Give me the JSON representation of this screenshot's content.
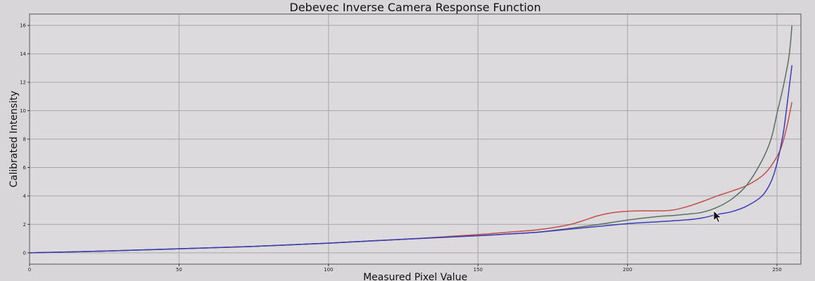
{
  "chart_data": {
    "type": "line",
    "title": "Debevec Inverse Camera Response Function",
    "xlabel": "Measured Pixel Value",
    "ylabel": "Calibrated Intensity",
    "xlim": [
      0,
      258
    ],
    "ylim": [
      -0.8,
      16.8
    ],
    "xticks": [
      0,
      50,
      100,
      150,
      200,
      250
    ],
    "yticks": [
      0,
      2,
      4,
      6,
      8,
      10,
      12,
      14,
      16
    ],
    "grid": true,
    "series": [
      {
        "color": "#c0504d",
        "points": [
          [
            0,
            0
          ],
          [
            25,
            0.12
          ],
          [
            50,
            0.28
          ],
          [
            75,
            0.45
          ],
          [
            100,
            0.68
          ],
          [
            125,
            0.95
          ],
          [
            150,
            1.28
          ],
          [
            160,
            1.45
          ],
          [
            170,
            1.62
          ],
          [
            180,
            1.95
          ],
          [
            185,
            2.25
          ],
          [
            190,
            2.6
          ],
          [
            195,
            2.82
          ],
          [
            200,
            2.92
          ],
          [
            205,
            2.95
          ],
          [
            210,
            2.95
          ],
          [
            215,
            3.0
          ],
          [
            220,
            3.25
          ],
          [
            225,
            3.6
          ],
          [
            230,
            4.0
          ],
          [
            235,
            4.35
          ],
          [
            240,
            4.75
          ],
          [
            245,
            5.4
          ],
          [
            248,
            6.1
          ],
          [
            251,
            7.2
          ],
          [
            253,
            8.6
          ],
          [
            255,
            10.6
          ]
        ]
      },
      {
        "color": "#5a7060",
        "points": [
          [
            0,
            0
          ],
          [
            25,
            0.12
          ],
          [
            50,
            0.28
          ],
          [
            75,
            0.45
          ],
          [
            100,
            0.68
          ],
          [
            125,
            0.95
          ],
          [
            150,
            1.2
          ],
          [
            160,
            1.32
          ],
          [
            170,
            1.45
          ],
          [
            180,
            1.7
          ],
          [
            190,
            1.98
          ],
          [
            200,
            2.3
          ],
          [
            210,
            2.55
          ],
          [
            215,
            2.62
          ],
          [
            220,
            2.72
          ],
          [
            225,
            2.85
          ],
          [
            230,
            3.2
          ],
          [
            235,
            3.8
          ],
          [
            240,
            4.8
          ],
          [
            245,
            6.5
          ],
          [
            248,
            8.0
          ],
          [
            250,
            9.8
          ],
          [
            252,
            11.6
          ],
          [
            254,
            13.8
          ],
          [
            255,
            16.0
          ]
        ]
      },
      {
        "color": "#3c3cb8",
        "points": [
          [
            0,
            0
          ],
          [
            25,
            0.12
          ],
          [
            50,
            0.28
          ],
          [
            75,
            0.45
          ],
          [
            100,
            0.68
          ],
          [
            125,
            0.95
          ],
          [
            150,
            1.2
          ],
          [
            160,
            1.32
          ],
          [
            170,
            1.45
          ],
          [
            180,
            1.65
          ],
          [
            190,
            1.85
          ],
          [
            200,
            2.05
          ],
          [
            210,
            2.18
          ],
          [
            220,
            2.32
          ],
          [
            225,
            2.45
          ],
          [
            230,
            2.7
          ],
          [
            235,
            2.9
          ],
          [
            240,
            3.3
          ],
          [
            245,
            4.0
          ],
          [
            248,
            5.0
          ],
          [
            250,
            6.3
          ],
          [
            252,
            8.3
          ],
          [
            253,
            9.8
          ],
          [
            254,
            11.5
          ],
          [
            255,
            13.2
          ]
        ]
      }
    ]
  }
}
